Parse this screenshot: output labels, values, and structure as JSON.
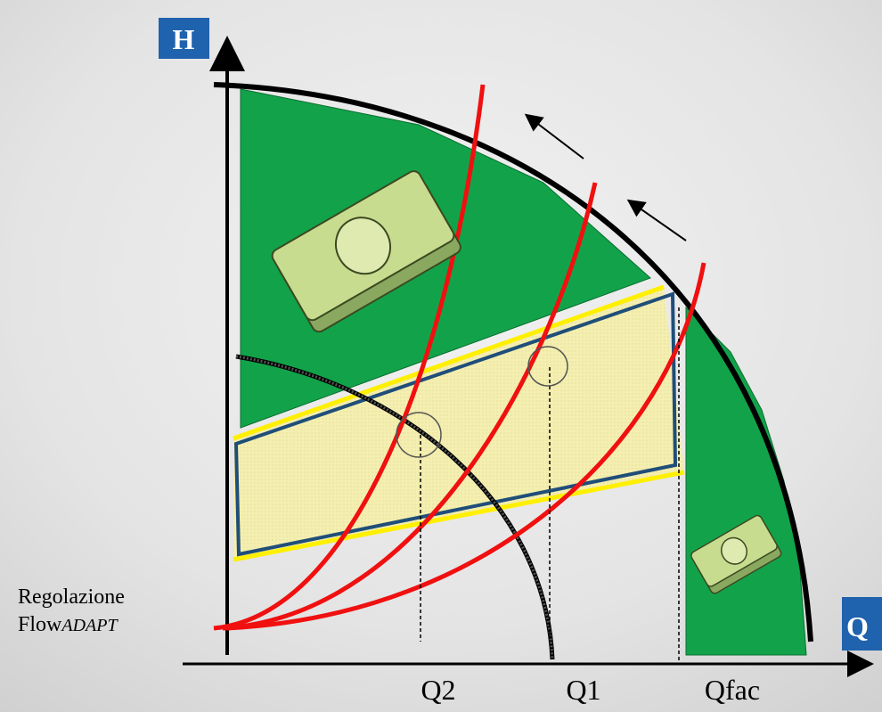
{
  "axis_labels": {
    "y": "H",
    "x": "Q"
  },
  "x_marks": [
    "Q2",
    "Q1",
    "Qfac"
  ],
  "annotation": {
    "line1": "Regolazione",
    "line2_prefix": "Flow",
    "line2_italic": "ADAPT"
  }
}
